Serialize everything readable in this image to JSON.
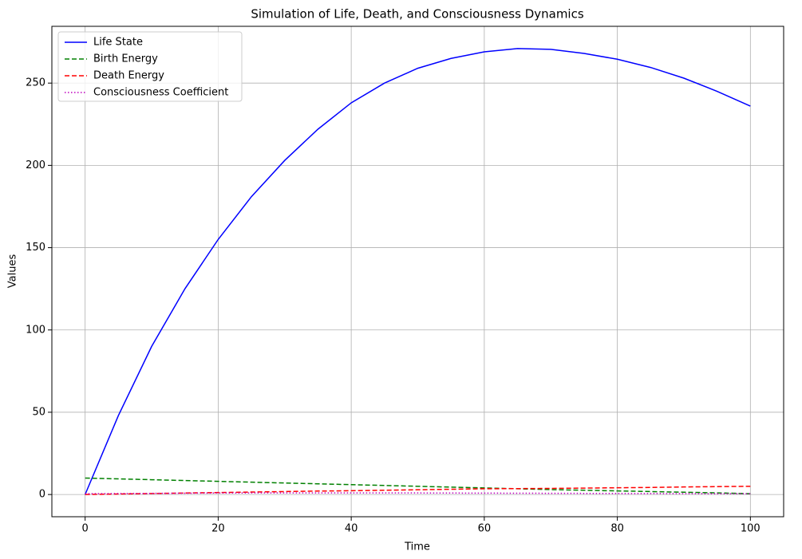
{
  "chart_data": {
    "type": "line",
    "title": "Simulation of Life, Death, and Consciousness Dynamics",
    "x_label": "Time",
    "y_label": "Values",
    "x": [
      0,
      5,
      10,
      15,
      20,
      25,
      30,
      35,
      40,
      45,
      50,
      55,
      60,
      65,
      70,
      75,
      80,
      85,
      90,
      95,
      100
    ],
    "series": [
      {
        "name": "Life State",
        "color": "#0000ff",
        "dash": "solid",
        "values": [
          0,
          48,
          90,
          125,
          155,
          181,
          203,
          222,
          238,
          250,
          259,
          265,
          269,
          271,
          270.5,
          268,
          264.5,
          259.5,
          253,
          245,
          236
        ]
      },
      {
        "name": "Birth Energy",
        "color": "#008000",
        "dash": "dashed",
        "values": [
          10,
          9.5,
          9,
          8.5,
          8,
          7.5,
          7,
          6.5,
          6,
          5.5,
          5,
          4.5,
          4,
          3.5,
          3,
          2.6,
          2.2,
          1.8,
          1.4,
          1,
          0.5
        ]
      },
      {
        "name": "Death Energy",
        "color": "#ff0000",
        "dash": "dashed",
        "values": [
          0,
          0.3,
          0.6,
          0.9,
          1.2,
          1.5,
          1.8,
          2.1,
          2.3,
          2.6,
          2.9,
          3.2,
          3.5,
          3.6,
          3.7,
          3.9,
          4.1,
          4.3,
          4.6,
          4.8,
          5
        ]
      },
      {
        "name": "Consciousness Coefficient",
        "color": "#bf00bf",
        "dash": "dotted",
        "values": [
          0.5,
          0.6,
          0.7,
          0.8,
          0.9,
          0.95,
          1,
          1,
          1,
          1,
          0.95,
          0.9,
          0.85,
          0.8,
          0.75,
          0.7,
          0.65,
          0.6,
          0.55,
          0.5,
          0.5
        ]
      }
    ],
    "xlim": [
      -5,
      105
    ],
    "ylim": [
      -13.5,
      284.5
    ],
    "xticks": [
      0,
      20,
      40,
      60,
      80,
      100
    ],
    "yticks": [
      0,
      50,
      100,
      150,
      200,
      250
    ],
    "grid": true,
    "legend": "upper-left"
  }
}
